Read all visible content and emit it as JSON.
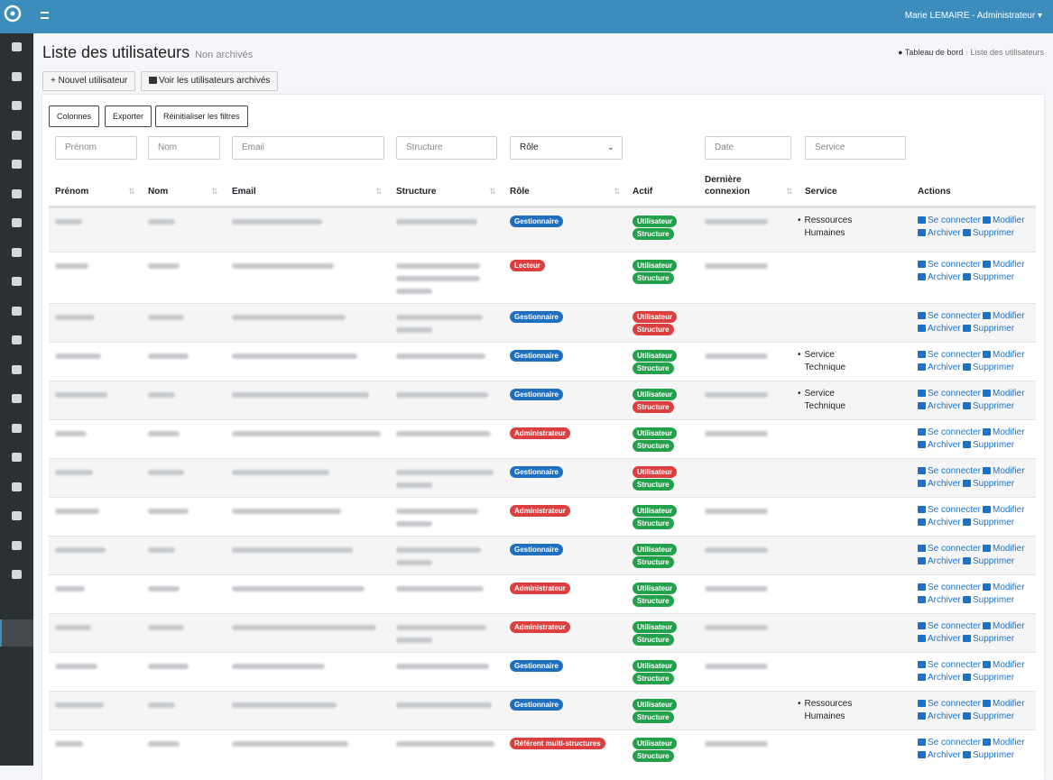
{
  "topbar": {
    "user": "Marie LEMAIRE - Administrateur"
  },
  "page": {
    "title": "Liste des utilisateurs",
    "subtitle": "Non archivés",
    "breadcrumb": [
      "Tableau de bord",
      "Liste des utilisateurs"
    ]
  },
  "buttons": {
    "new": "Nouvel utilisateur",
    "archived": "Voir les utilisateurs archivés"
  },
  "toolbar": [
    "Colonnes",
    "Exporter",
    "Réinitialiser les filtres"
  ],
  "filters": [
    "Prénom",
    "Nom",
    "Email",
    "Structure",
    "Rôle",
    "Date",
    "Service"
  ],
  "columns": [
    "Prénom",
    "Nom",
    "Email",
    "Structure",
    "Rôle",
    "Actif",
    "Dernière connexion",
    "Service",
    "Actions"
  ],
  "actions": [
    "Se connecter",
    "Modifier",
    "Archiver",
    "Supprimer"
  ],
  "badges": {
    "user": "Utilisateur",
    "structure": "Structure"
  },
  "colors": {
    "active": "#23a04a",
    "inactive": "#dc3f3f"
  },
  "rows": [
    {
      "role": "Gestionnaire",
      "role_color": "#1f6fc0",
      "user_active": true,
      "structure_active": true,
      "service": "Ressources Humaines"
    },
    {
      "role": "Lecteur",
      "role_color": "#dc3f3f",
      "user_active": true,
      "structure_active": true
    },
    {
      "role": "Gestionnaire",
      "role_color": "#1f6fc0",
      "user_active": false,
      "structure_active": false
    },
    {
      "role": "Gestionnaire",
      "role_color": "#1f6fc0",
      "user_active": true,
      "structure_active": true,
      "service": "Service Technique"
    },
    {
      "role": "Gestionnaire",
      "role_color": "#1f6fc0",
      "user_active": true,
      "structure_active": false,
      "service": "Service Technique"
    },
    {
      "role": "Administrateur",
      "role_color": "#dc3f3f",
      "user_active": true,
      "structure_active": true
    },
    {
      "role": "Gestionnaire",
      "role_color": "#1f6fc0",
      "user_active": false,
      "structure_active": true
    },
    {
      "role": "Administrateur",
      "role_color": "#dc3f3f",
      "user_active": true,
      "structure_active": true
    },
    {
      "role": "Gestionnaire",
      "role_color": "#1f6fc0",
      "user_active": true,
      "structure_active": true
    },
    {
      "role": "Administrateur",
      "role_color": "#dc3f3f",
      "user_active": true,
      "structure_active": true
    },
    {
      "role": "Administrateur",
      "role_color": "#dc3f3f",
      "user_active": true,
      "structure_active": true
    },
    {
      "role": "Gestionnaire",
      "role_color": "#1f6fc0",
      "user_active": true,
      "structure_active": true
    },
    {
      "role": "Gestionnaire",
      "role_color": "#1f6fc0",
      "user_active": true,
      "structure_active": true,
      "service": "Ressources Humaines"
    },
    {
      "role": "Référent multi-structures",
      "role_color": "#dc3f3f",
      "user_active": true,
      "structure_active": true
    }
  ]
}
